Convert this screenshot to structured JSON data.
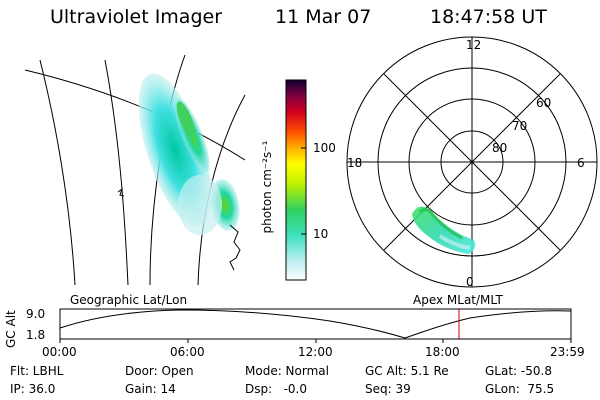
{
  "header": {
    "instrument": "Ultraviolet Imager",
    "date": "11 Mar 07",
    "time": "18:47:58 UT"
  },
  "geo_panel": {
    "label": "Geographic Lat/Lon"
  },
  "apex_panel": {
    "label": "Apex MLat/MLT",
    "mlt_labels": {
      "top": "12",
      "left": "18",
      "right": "6",
      "bottom": "0"
    },
    "lat_labels": [
      "60",
      "70",
      "80"
    ]
  },
  "colorbar": {
    "unit_label": "photon cm⁻²s⁻¹",
    "tick_labels": [
      "100",
      "10"
    ],
    "scale": "log"
  },
  "orbit_plot": {
    "ylabel": "GC Alt",
    "y_ticks": [
      "9.0",
      "1.8"
    ],
    "x_ticks": [
      "00:00",
      "06:00",
      "12:00",
      "18:00",
      "23:59"
    ],
    "current_time_marker": "18:47:58",
    "marker_color": "#cc0000"
  },
  "footer": {
    "row1": [
      {
        "key": "flt",
        "text": "Flt: LBHL"
      },
      {
        "key": "door",
        "text": "Door: Open"
      },
      {
        "key": "mode",
        "text": "Mode: Normal"
      },
      {
        "key": "gcalt",
        "text": "GC Alt: 5.1 Re"
      },
      {
        "key": "glat",
        "text": "GLat: -50.8"
      }
    ],
    "row2": [
      {
        "key": "ip",
        "text": "IP: 36.0"
      },
      {
        "key": "gain",
        "text": "Gain: 14"
      },
      {
        "key": "dsp",
        "text": "Dsp:   -0.0"
      },
      {
        "key": "seq",
        "text": "Seq: 39"
      },
      {
        "key": "glon",
        "text": "GLon:  75.5"
      }
    ]
  }
}
